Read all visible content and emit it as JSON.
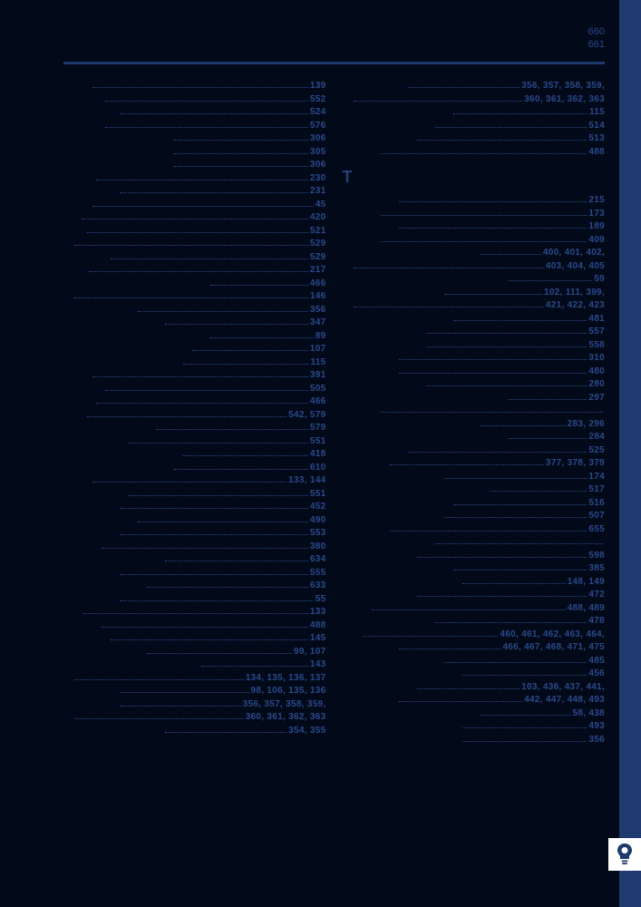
{
  "colors": {
    "background": "#020918",
    "sidebar": "#1e3a6e",
    "rule": "#1e3a6e",
    "text": "#2a4a8c",
    "dots": "#2a4a8c",
    "badge_bg": "#ffffff",
    "bulb": "#1e3a6e"
  },
  "header": {
    "page_top": "660",
    "page_bottom": "661"
  },
  "section_letter": "T",
  "left_column": [
    {
      "indent": 30,
      "pages": "139"
    },
    {
      "indent": 44,
      "pages": "552"
    },
    {
      "indent": 60,
      "pages": "524"
    },
    {
      "indent": 44,
      "pages": "576"
    },
    {
      "indent": 120,
      "pages": "306"
    },
    {
      "indent": 120,
      "pages": "305"
    },
    {
      "indent": 120,
      "pages": "306"
    },
    {
      "indent": 34,
      "pages": "230"
    },
    {
      "indent": 60,
      "pages": "231"
    },
    {
      "indent": 30,
      "pages": "45"
    },
    {
      "indent": 18,
      "pages": "420"
    },
    {
      "indent": 24,
      "pages": "521"
    },
    {
      "indent": 0,
      "pages": "529"
    },
    {
      "indent": 50,
      "pages": "529"
    },
    {
      "indent": 26,
      "pages": "217"
    },
    {
      "indent": 160,
      "pages": "466"
    },
    {
      "indent": 10,
      "pages": "146"
    },
    {
      "indent": 80,
      "pages": "356"
    },
    {
      "indent": 110,
      "pages": "347"
    },
    {
      "indent": 160,
      "pages": "89"
    },
    {
      "indent": 140,
      "pages": "107"
    },
    {
      "indent": 130,
      "pages": "115"
    },
    {
      "indent": 30,
      "pages": "391"
    },
    {
      "indent": 44,
      "pages": "505"
    },
    {
      "indent": 34,
      "pages": "466"
    },
    {
      "indent": 24,
      "pages": "542, 579"
    },
    {
      "indent": 100,
      "pages": "579"
    },
    {
      "indent": 70,
      "pages": "551"
    },
    {
      "indent": 130,
      "pages": "418"
    },
    {
      "indent": 120,
      "pages": "610"
    },
    {
      "indent": 30,
      "pages": "133, 144"
    },
    {
      "indent": 70,
      "pages": "551"
    },
    {
      "indent": 60,
      "pages": "452"
    },
    {
      "indent": 80,
      "pages": "490"
    },
    {
      "indent": 60,
      "pages": "553"
    },
    {
      "indent": 40,
      "pages": "380"
    },
    {
      "indent": 110,
      "pages": "634"
    },
    {
      "indent": 60,
      "pages": "555"
    },
    {
      "indent": 90,
      "pages": "633"
    },
    {
      "indent": 60,
      "pages": "55"
    },
    {
      "indent": 20,
      "pages": "133"
    },
    {
      "indent": 40,
      "pages": "488"
    },
    {
      "indent": 50,
      "pages": "145"
    },
    {
      "indent": 90,
      "pages": "99, 107"
    },
    {
      "indent": 150,
      "pages": "143"
    },
    {
      "indent": 0,
      "pages": "134, 135, 136, 137"
    },
    {
      "indent": 60,
      "pages": "98, 106, 135, 136"
    },
    {
      "indent": 60,
      "pages": "356, 357, 358, 359,"
    },
    {
      "indent": 0,
      "pages": "360, 361, 362, 363"
    },
    {
      "indent": 110,
      "pages": "354, 355"
    }
  ],
  "right_top": [
    {
      "indent": 70,
      "pages": "356, 357, 358, 359,"
    },
    {
      "indent": 0,
      "pages": "360, 361, 362, 363"
    },
    {
      "indent": 120,
      "pages": "115"
    },
    {
      "indent": 100,
      "pages": "514"
    },
    {
      "indent": 80,
      "pages": "513"
    },
    {
      "indent": 40,
      "pages": "488"
    }
  ],
  "right_bottom": [
    {
      "indent": 60,
      "pages": "215"
    },
    {
      "indent": 40,
      "pages": "173"
    },
    {
      "indent": 60,
      "pages": "189"
    },
    {
      "indent": 40,
      "pages": "409"
    },
    {
      "indent": 150,
      "pages": "400, 401, 402,"
    },
    {
      "indent": 0,
      "pages": "403, 404, 405"
    },
    {
      "indent": 180,
      "pages": "59"
    },
    {
      "indent": 110,
      "pages": "102, 111, 399,"
    },
    {
      "indent": 0,
      "pages": "421, 422, 423"
    },
    {
      "indent": 120,
      "pages": "481"
    },
    {
      "indent": 90,
      "pages": "557"
    },
    {
      "indent": 90,
      "pages": "558"
    },
    {
      "indent": 60,
      "pages": "310"
    },
    {
      "indent": 60,
      "pages": "480"
    },
    {
      "indent": 90,
      "pages": "280"
    },
    {
      "indent": 180,
      "pages": "297"
    },
    {
      "indent": 40,
      "pages": ""
    },
    {
      "indent": 150,
      "pages": "283, 296"
    },
    {
      "indent": 180,
      "pages": "284"
    },
    {
      "indent": 70,
      "pages": "525"
    },
    {
      "indent": 50,
      "pages": "377, 378, 379"
    },
    {
      "indent": 110,
      "pages": "174"
    },
    {
      "indent": 160,
      "pages": "517"
    },
    {
      "indent": 120,
      "pages": "516"
    },
    {
      "indent": 110,
      "pages": "507"
    },
    {
      "indent": 50,
      "pages": "655"
    },
    {
      "indent": 100,
      "pages": ""
    },
    {
      "indent": 80,
      "pages": "598"
    },
    {
      "indent": 120,
      "pages": "385"
    },
    {
      "indent": 130,
      "pages": "148, 149"
    },
    {
      "indent": 80,
      "pages": "472"
    },
    {
      "indent": 30,
      "pages": "488, 489"
    },
    {
      "indent": 100,
      "pages": "478"
    },
    {
      "indent": 20,
      "pages": "460, 461, 462, 463, 464,"
    },
    {
      "indent": 60,
      "pages": "466, 467, 468, 471, 475"
    },
    {
      "indent": 110,
      "pages": "485"
    },
    {
      "indent": 130,
      "pages": "456"
    },
    {
      "indent": 80,
      "pages": "103, 436, 437, 441,"
    },
    {
      "indent": 60,
      "pages": "442, 447, 448, 493"
    },
    {
      "indent": 150,
      "pages": "58, 438"
    },
    {
      "indent": 130,
      "pages": "493"
    },
    {
      "indent": 130,
      "pages": "356"
    }
  ]
}
